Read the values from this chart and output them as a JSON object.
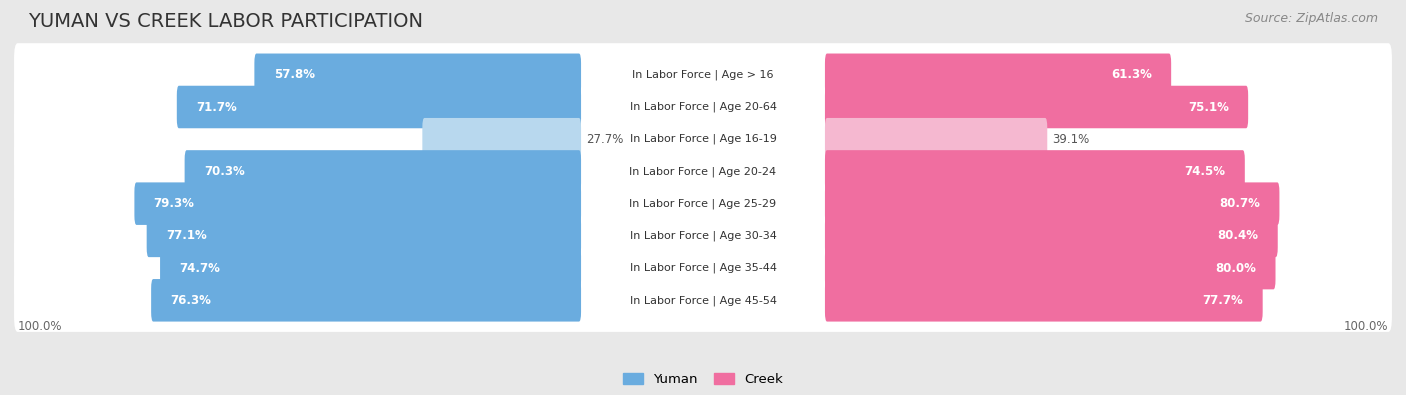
{
  "title": "YUMAN VS CREEK LABOR PARTICIPATION",
  "source": "Source: ZipAtlas.com",
  "categories": [
    "In Labor Force | Age > 16",
    "In Labor Force | Age 20-64",
    "In Labor Force | Age 16-19",
    "In Labor Force | Age 20-24",
    "In Labor Force | Age 25-29",
    "In Labor Force | Age 30-34",
    "In Labor Force | Age 35-44",
    "In Labor Force | Age 45-54"
  ],
  "yuman_values": [
    57.8,
    71.7,
    27.7,
    70.3,
    79.3,
    77.1,
    74.7,
    76.3
  ],
  "creek_values": [
    61.3,
    75.1,
    39.1,
    74.5,
    80.7,
    80.4,
    80.0,
    77.7
  ],
  "yuman_color": "#6aacdf",
  "yuman_light_color": "#b8d8ee",
  "creek_color": "#f06ea0",
  "creek_light_color": "#f5b8d0",
  "bg_color": "#e8e8e8",
  "row_bg_color": "#ffffff",
  "outer_bg_color": "#dcdcdc",
  "bar_height": 0.72,
  "max_value": 100.0,
  "legend_label_yuman": "Yuman",
  "legend_label_creek": "Creek",
  "title_fontsize": 14,
  "source_fontsize": 9,
  "label_fontsize": 8.5,
  "category_fontsize": 8,
  "light_rows": [
    2
  ]
}
